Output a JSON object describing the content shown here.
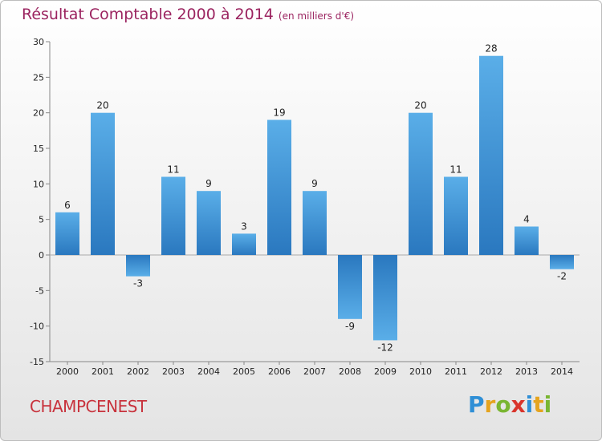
{
  "header": {
    "title": "Résultat Comptable 2000 à 2014",
    "subtitle": "(en milliers d'€)"
  },
  "footer": {
    "commune": "CHAMPCENEST",
    "brand": "Proxiti",
    "brand_letters": [
      {
        "ch": "P",
        "color": "#2f8fd6"
      },
      {
        "ch": "r",
        "color": "#e5a41f"
      },
      {
        "ch": "o",
        "color": "#7ab632"
      },
      {
        "ch": "x",
        "color": "#d9342b"
      },
      {
        "ch": "i",
        "color": "#2f8fd6"
      },
      {
        "ch": "t",
        "color": "#e5a41f"
      },
      {
        "ch": "i",
        "color": "#7ab632"
      }
    ]
  },
  "chart_data": {
    "type": "bar",
    "title": "Résultat Comptable 2000 à 2014",
    "xlabel": "",
    "ylabel": "",
    "ylim": [
      -15,
      30
    ],
    "yticks": [
      30,
      25,
      20,
      15,
      10,
      5,
      0,
      -5,
      -10,
      -15
    ],
    "grid": false,
    "categories": [
      "2000",
      "2001",
      "2002",
      "2003",
      "2004",
      "2005",
      "2006",
      "2007",
      "2008",
      "2009",
      "2010",
      "2011",
      "2012",
      "2013",
      "2014"
    ],
    "values": [
      6,
      20,
      -3,
      11,
      9,
      3,
      19,
      9,
      -9,
      -12,
      20,
      11,
      28,
      4,
      -2
    ],
    "bar_color_light": "#5aaee8",
    "bar_color_dark": "#2a78bf"
  }
}
